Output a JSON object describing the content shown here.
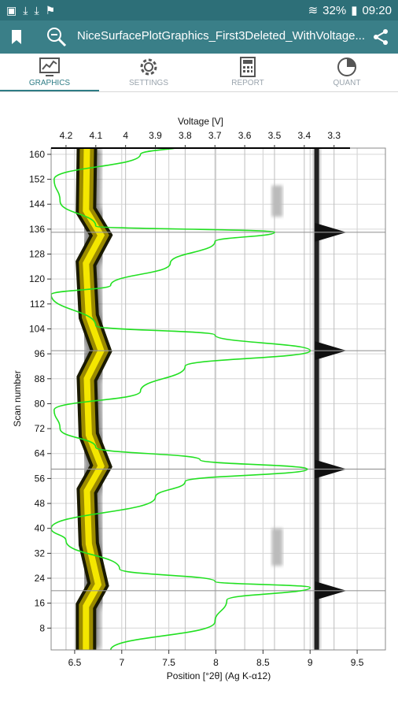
{
  "status_bar": {
    "notification_icons": [
      "image-icon",
      "download-icon",
      "download-icon",
      "flag-icon"
    ],
    "battery": "32%",
    "time": "09:20"
  },
  "app_bar": {
    "title": "NiceSurfacePlotGraphics_First3Deleted_WithVoltage..."
  },
  "tabs": [
    {
      "label": "GRAPHICS",
      "icon": "chart-icon",
      "active": true
    },
    {
      "label": "SETTINGS",
      "icon": "gear-icon",
      "active": false
    },
    {
      "label": "REPORT",
      "icon": "calculator-icon",
      "active": false
    },
    {
      "label": "QUANT",
      "icon": "pie-chart-icon",
      "active": false
    }
  ],
  "chart_data": {
    "type": "heatmap",
    "xlabel": "Position [°2θ] (Ag K-α12)",
    "ylabel": "Scan number",
    "x2label": "Voltage [V]",
    "xlim": [
      6.25,
      9.8
    ],
    "ylim": [
      1,
      162
    ],
    "x_ticks": [
      "6.5",
      "7",
      "7.5",
      "8",
      "8.5",
      "9",
      "9.5"
    ],
    "y_ticks": [
      "8",
      "16",
      "24",
      "32",
      "40",
      "48",
      "56",
      "64",
      "72",
      "80",
      "88",
      "96",
      "104",
      "112",
      "120",
      "128",
      "136",
      "144",
      "152",
      "160"
    ],
    "voltage_ticks": [
      "4.2",
      "4.1",
      "4",
      "3.9",
      "3.8",
      "3.7",
      "3.6",
      "3.5",
      "3.4",
      "3.3"
    ],
    "voltage_range": [
      4.25,
      3.22
    ],
    "main_peak_path": [
      [
        6.62,
        1
      ],
      [
        6.62,
        15
      ],
      [
        6.75,
        22
      ],
      [
        6.65,
        35
      ],
      [
        6.63,
        52
      ],
      [
        6.78,
        60
      ],
      [
        6.65,
        70
      ],
      [
        6.63,
        88
      ],
      [
        6.78,
        97
      ],
      [
        6.65,
        108
      ],
      [
        6.62,
        125
      ],
      [
        6.78,
        134
      ],
      [
        6.62,
        142
      ],
      [
        6.63,
        162
      ]
    ],
    "side_peak_x": 9.07,
    "faint_peak_x": 8.65,
    "voltage_curve": [
      [
        4.05,
        1
      ],
      [
        3.7,
        10
      ],
      [
        3.66,
        17
      ],
      [
        3.38,
        21
      ],
      [
        3.7,
        23
      ],
      [
        4.02,
        27
      ],
      [
        4.2,
        36
      ],
      [
        4.25,
        40
      ],
      [
        3.9,
        50
      ],
      [
        3.8,
        55
      ],
      [
        3.39,
        59
      ],
      [
        3.75,
        62
      ],
      [
        4.1,
        66
      ],
      [
        4.22,
        72
      ],
      [
        4.24,
        78
      ],
      [
        3.95,
        84
      ],
      [
        3.8,
        92
      ],
      [
        3.38,
        97
      ],
      [
        3.7,
        102
      ],
      [
        4.1,
        105
      ],
      [
        4.25,
        115
      ],
      [
        4.05,
        118
      ],
      [
        3.85,
        125
      ],
      [
        3.7,
        132
      ],
      [
        3.5,
        135
      ],
      [
        4.1,
        137
      ],
      [
        4.22,
        145
      ],
      [
        4.24,
        152
      ],
      [
        3.95,
        160
      ],
      [
        3.8,
        163
      ]
    ]
  }
}
